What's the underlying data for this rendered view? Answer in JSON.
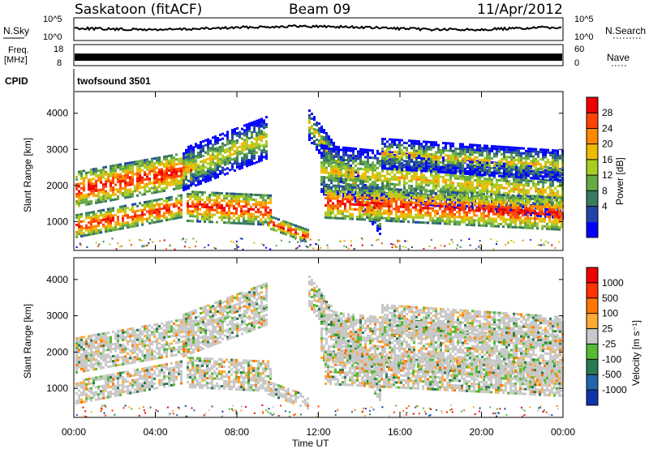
{
  "header": {
    "station": "Saskatoon (fitACF)",
    "beam": "Beam 09",
    "date": "11/Apr/2012"
  },
  "top_panels": {
    "nsky_label": "N.Sky",
    "nsearch_label": "N.Search",
    "nsky_ticks": [
      "10^5",
      "10^0"
    ],
    "nsearch_ticks": [
      "10^5",
      "10^0"
    ],
    "freq_label_top": "Freq.",
    "freq_label_bottom": "[MHz]",
    "freq_ticks": [
      "18",
      "8"
    ],
    "nave_label": "Nave",
    "nave_ticks": [
      "60",
      "0"
    ],
    "cpid_label": "CPID",
    "cpid_value": "twofsound 3501"
  },
  "chart_data": [
    {
      "type": "heatmap",
      "name": "power",
      "ylabel": "Slant Range [km]",
      "xlabel": "Time UT",
      "ylim": [
        200,
        4600
      ],
      "yticks": [
        "4000",
        "3000",
        "2000",
        "1000"
      ],
      "xticks": [
        "00:00",
        "04:00",
        "08:00",
        "12:00",
        "16:00",
        "20:00",
        "00:00"
      ],
      "colorbar_label": "Power [dB]",
      "colorbar_ticks": [
        "28",
        "24",
        "20",
        "16",
        "12",
        "8",
        "4"
      ],
      "colors": [
        "#0000ff",
        "#2244aa",
        "#3a7a60",
        "#66aa44",
        "#aacc22",
        "#eebb00",
        "#ff8800",
        "#ff4400",
        "#ee0000"
      ]
    },
    {
      "type": "heatmap",
      "name": "velocity",
      "ylabel": "Slant Range [km]",
      "xlabel": "Time UT",
      "ylim": [
        200,
        4600
      ],
      "yticks": [
        "4000",
        "3000",
        "2000",
        "1000"
      ],
      "xticks": [
        "00:00",
        "04:00",
        "08:00",
        "12:00",
        "16:00",
        "20:00",
        "00:00"
      ],
      "colorbar_label": "Velocity [m s⁻¹]",
      "colorbar_ticks": [
        "1000",
        "500",
        "100",
        "25",
        "-25",
        "-100",
        "-500",
        "-1000"
      ],
      "colors": [
        "#1133aa",
        "#2266aa",
        "#2a7a50",
        "#55bb33",
        "#c8c8c8",
        "#ffaa33",
        "#ff7700",
        "#ff3300",
        "#ee0000"
      ]
    }
  ]
}
